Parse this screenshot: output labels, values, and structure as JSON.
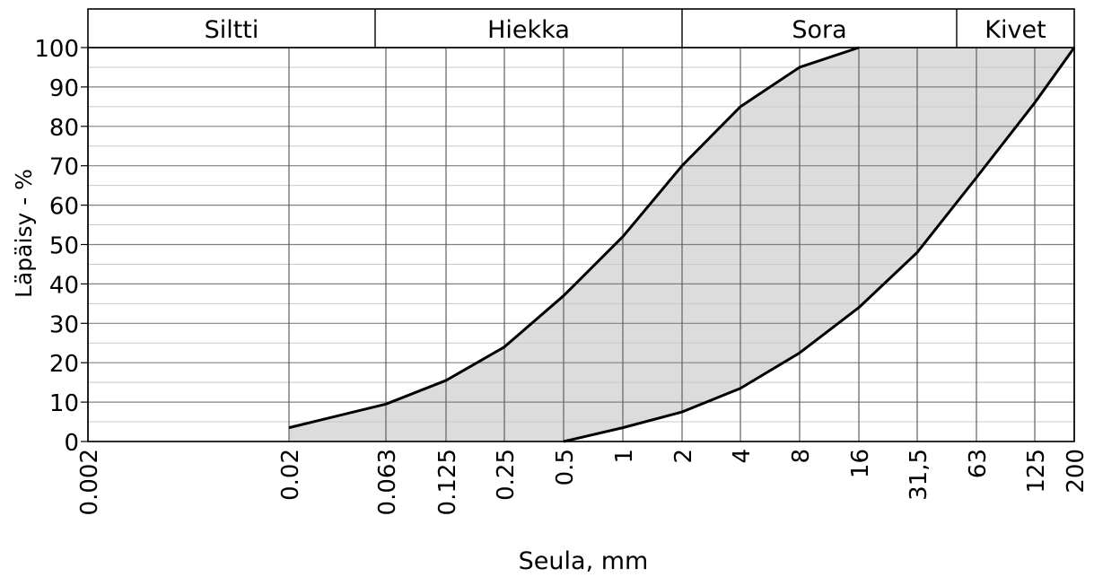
{
  "chart_data": {
    "type": "area",
    "xscale": "log",
    "xlabel": "Seula, mm",
    "ylabel": "Läpäisy - %",
    "ylim": [
      0,
      100
    ],
    "grid": true,
    "x_ticks": [
      {
        "value": 0.002,
        "label": "0.002"
      },
      {
        "value": 0.02,
        "label": "0.02"
      },
      {
        "value": 0.063,
        "label": "0.063"
      },
      {
        "value": 0.125,
        "label": "0.125"
      },
      {
        "value": 0.25,
        "label": "0.25"
      },
      {
        "value": 0.5,
        "label": "0.5"
      },
      {
        "value": 1,
        "label": "1"
      },
      {
        "value": 2,
        "label": "2"
      },
      {
        "value": 4,
        "label": "4"
      },
      {
        "value": 8,
        "label": "8"
      },
      {
        "value": 16,
        "label": "16"
      },
      {
        "value": 31.5,
        "label": "31,5"
      },
      {
        "value": 63,
        "label": "63"
      },
      {
        "value": 125,
        "label": "125"
      },
      {
        "value": 200,
        "label": "200"
      }
    ],
    "y_ticks": [
      0,
      10,
      20,
      30,
      40,
      50,
      60,
      70,
      80,
      90,
      100
    ],
    "fractions": [
      {
        "label": "Siltti",
        "from": 0.002,
        "to": 0.06
      },
      {
        "label": "Hiekka",
        "from": 0.06,
        "to": 2
      },
      {
        "label": "Sora",
        "from": 2,
        "to": 60
      },
      {
        "label": "Kivet",
        "from": 60,
        "to": 200
      }
    ],
    "series": [
      {
        "points": [
          [
            0.02,
            3.5
          ],
          [
            0.063,
            9.5
          ],
          [
            0.125,
            15.5
          ],
          [
            0.25,
            24
          ],
          [
            0.5,
            37
          ],
          [
            1,
            52
          ],
          [
            2,
            70
          ],
          [
            4,
            85
          ],
          [
            8,
            95
          ],
          [
            16,
            100
          ]
        ]
      },
      {
        "points": [
          [
            0.5,
            0
          ],
          [
            1,
            3.5
          ],
          [
            2,
            7.5
          ],
          [
            4,
            13.5
          ],
          [
            8,
            22.5
          ],
          [
            16,
            34
          ],
          [
            31.5,
            48
          ],
          [
            63,
            67
          ],
          [
            125,
            86
          ],
          [
            200,
            100
          ]
        ]
      }
    ],
    "colors": {
      "fill": "#dcdcdc",
      "line": "#000000",
      "grid": "#808080",
      "grid_light": "#c8c8c8"
    }
  }
}
